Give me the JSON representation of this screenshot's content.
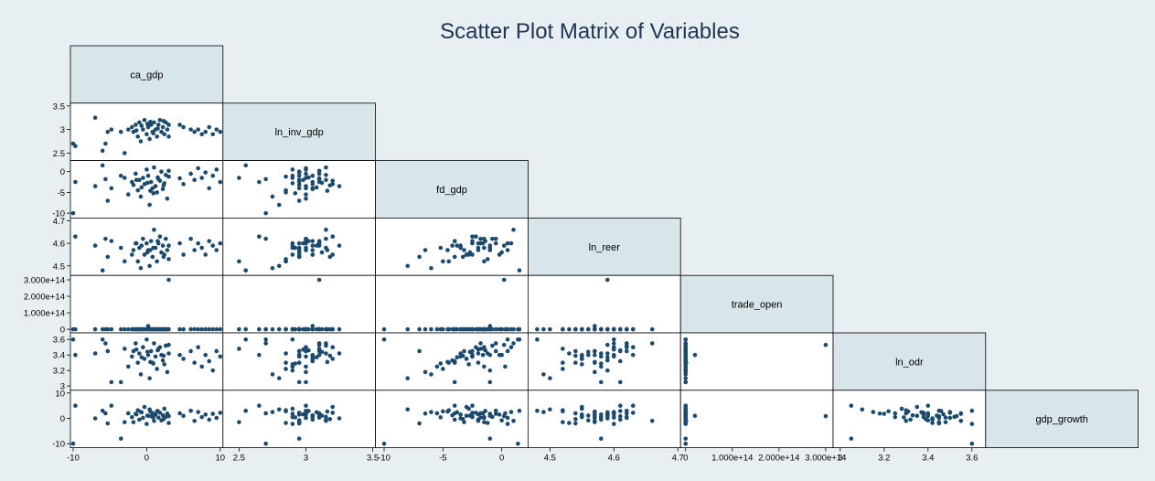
{
  "chart_data": {
    "type": "scatter",
    "title": "Scatter Plot Matrix of Variables",
    "colors": {
      "background": "#e8eff2",
      "diagonal_fill": "#d8e5ea",
      "point": "#1c4a6d",
      "title": "#1f3553"
    },
    "variables": [
      {
        "name": "ca_gdp",
        "range": [
          -10,
          10
        ],
        "ticks": [
          -10,
          0,
          10
        ],
        "tick_labels": [
          "-10",
          "0",
          "10"
        ]
      },
      {
        "name": "ln_inv_gdp",
        "range": [
          2.4,
          3.5
        ],
        "ticks": [
          2.5,
          3,
          3.5
        ],
        "tick_labels": [
          "2.5",
          "3",
          "3.5"
        ]
      },
      {
        "name": "fd_gdp",
        "range": [
          -10.5,
          2
        ],
        "ticks": [
          -10,
          -5,
          0
        ],
        "tick_labels": [
          "-10",
          "-5",
          "0"
        ]
      },
      {
        "name": "ln_reer",
        "range": [
          4.47,
          4.7
        ],
        "ticks": [
          4.5,
          4.6,
          4.7
        ],
        "tick_labels": [
          "4.5",
          "4.6",
          "4.7"
        ]
      },
      {
        "name": "trade_open",
        "range": [
          -5000000000000.0,
          310000000000000.0
        ],
        "ticks": [
          0,
          100000000000000.0,
          200000000000000.0,
          300000000000000.0
        ],
        "tick_labels": [
          "0",
          "1.000e+14",
          "2.000e+14",
          "3.000e+14"
        ]
      },
      {
        "name": "ln_odr",
        "range": [
          2.98,
          3.65
        ],
        "ticks": [
          3,
          3.2,
          3.4,
          3.6
        ],
        "tick_labels": [
          "3",
          "3.2",
          "3.4",
          "3.6"
        ]
      },
      {
        "name": "gdp_growth",
        "range": [
          -10.5,
          10
        ],
        "ticks": [
          -10,
          0,
          10
        ],
        "tick_labels": [
          "-10",
          "0",
          "10"
        ]
      }
    ],
    "observations": [
      [
        -10,
        2.7,
        -10.0,
        4.45,
        0,
        3.6,
        -10.0
      ],
      [
        -9.7,
        2.65,
        -2.5,
        4.63,
        0,
        3.4,
        5.0
      ],
      [
        -5.6,
        2.7,
        -1.8,
        4.62,
        0,
        3.55,
        2.0
      ],
      [
        -5.3,
        2.95,
        -7.0,
        4.54,
        0,
        3.45,
        -2.0
      ],
      [
        -4.8,
        3.0,
        -4.0,
        4.61,
        0,
        3.05,
        5.0
      ],
      [
        -3.5,
        2.95,
        -1.0,
        4.58,
        0,
        3.05,
        -8.0
      ],
      [
        -2.5,
        3.0,
        -5.5,
        4.43,
        0,
        3.25,
        2.0
      ],
      [
        -2.0,
        3.05,
        -2.5,
        4.55,
        0,
        3.38,
        0.5
      ],
      [
        -1.8,
        2.95,
        -3.2,
        4.57,
        0,
        3.45,
        -1.5
      ],
      [
        -1.5,
        3.1,
        -0.5,
        4.6,
        0,
        3.55,
        1.8
      ],
      [
        -1.2,
        2.85,
        -4.5,
        4.52,
        0,
        3.3,
        3.2
      ],
      [
        -1.0,
        3.15,
        -2.0,
        4.58,
        0,
        3.42,
        -0.5
      ],
      [
        -0.8,
        2.75,
        -6.0,
        4.49,
        0,
        3.15,
        2.5
      ],
      [
        -0.5,
        3.0,
        -1.5,
        4.62,
        0,
        3.5,
        0.2
      ],
      [
        -0.3,
        3.2,
        -3.0,
        4.55,
        0,
        3.35,
        4.5
      ],
      [
        0.0,
        2.9,
        0.5,
        4.6,
        0,
        3.6,
        -2.2
      ],
      [
        0.2,
        3.05,
        -1.0,
        4.57,
        20000000000000.0,
        3.4,
        1.0
      ],
      [
        0.4,
        2.8,
        -8.0,
        4.5,
        0,
        3.1,
        3.5
      ],
      [
        0.6,
        3.1,
        -2.5,
        4.61,
        0,
        3.45,
        0.8
      ],
      [
        0.8,
        2.95,
        -4.0,
        4.54,
        0,
        3.3,
        2.0
      ],
      [
        1.0,
        3.15,
        1.0,
        4.66,
        0,
        3.55,
        -1.0
      ],
      [
        1.2,
        3.0,
        -3.5,
        4.58,
        0,
        3.38,
        1.5
      ],
      [
        1.4,
        2.85,
        -5.0,
        4.52,
        0,
        3.22,
        2.8
      ],
      [
        1.6,
        3.1,
        -1.8,
        4.6,
        0,
        3.48,
        0.3
      ],
      [
        1.8,
        3.2,
        -2.2,
        4.63,
        0,
        3.5,
        2.2
      ],
      [
        2.0,
        2.95,
        0.0,
        4.56,
        0,
        3.4,
        -0.8
      ],
      [
        2.2,
        3.05,
        -4.2,
        4.59,
        0,
        3.33,
        1.2
      ],
      [
        2.4,
        2.9,
        -2.8,
        4.55,
        0,
        3.28,
        3.8
      ],
      [
        2.6,
        3.15,
        -0.8,
        4.62,
        0,
        3.52,
        0.6
      ],
      [
        2.8,
        3.0,
        -6.5,
        4.57,
        0,
        3.18,
        1.9
      ],
      [
        3.0,
        2.85,
        -1.2,
        4.53,
        0,
        3.42,
        -1.8
      ],
      [
        -0.7,
        3.08,
        -3.8,
        4.59,
        0,
        3.37,
        2.4
      ],
      [
        0.1,
        3.12,
        -2.7,
        4.56,
        0,
        3.44,
        1.1
      ],
      [
        0.9,
        2.92,
        -5.2,
        4.58,
        0,
        3.29,
        0.4
      ],
      [
        1.5,
        3.02,
        -1.4,
        4.61,
        0,
        3.46,
        2.9
      ],
      [
        2.3,
        3.18,
        -3.3,
        4.54,
        0,
        3.39,
        -0.3
      ],
      [
        -1.4,
        2.98,
        -2.0,
        4.6,
        0,
        3.47,
        1.6
      ],
      [
        0.5,
        3.16,
        -4.6,
        4.57,
        0,
        3.31,
        2.7
      ],
      [
        3.0,
        3.1,
        0.2,
        4.59,
        300000000000000.0,
        3.53,
        0.9
      ],
      [
        4.5,
        3.1,
        -1.6,
        4.6,
        0,
        3.4,
        2.0
      ],
      [
        5.0,
        3.05,
        -3.0,
        4.55,
        0,
        3.35,
        1.0
      ],
      [
        6.0,
        3.0,
        -0.5,
        4.62,
        0,
        3.45,
        3.0
      ],
      [
        6.5,
        2.95,
        -2.0,
        4.57,
        1000000000000.0,
        3.3,
        -1.0
      ],
      [
        7.0,
        3.0,
        0.8,
        4.6,
        0,
        3.5,
        2.5
      ],
      [
        7.5,
        2.9,
        -1.5,
        4.58,
        0,
        3.25,
        0.5
      ],
      [
        8.0,
        2.95,
        -0.2,
        4.55,
        0,
        3.4,
        1.5
      ],
      [
        8.5,
        3.05,
        -4.0,
        4.61,
        0,
        3.32,
        -0.5
      ],
      [
        9.0,
        2.9,
        -1.0,
        4.59,
        0,
        3.2,
        1.8
      ],
      [
        9.5,
        3.0,
        0.5,
        4.57,
        0,
        3.45,
        0.2
      ],
      [
        10.0,
        2.95,
        -2.5,
        4.6,
        0,
        3.38,
        2.2
      ],
      [
        -6.0,
        2.55,
        1.5,
        4.48,
        0,
        3.6,
        3.0
      ],
      [
        -3.0,
        2.5,
        -1.5,
        4.52,
        0,
        3.48,
        -1.5
      ],
      [
        -7.0,
        3.25,
        -3.5,
        4.59,
        0,
        3.42,
        0.0
      ]
    ]
  }
}
